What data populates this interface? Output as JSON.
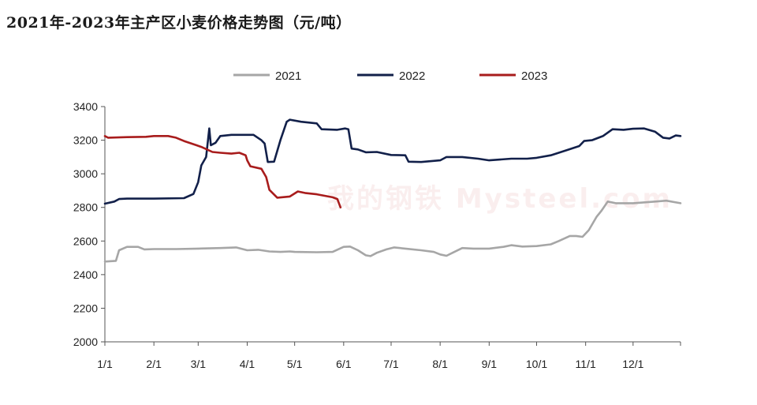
{
  "title": "2021年-2023年主产区小麦价格走势图（元/吨）",
  "watermark": "我的钢铁 Mysteel.com",
  "chart_data": {
    "type": "line",
    "title": "2021年-2023年主产区小麦价格走势图（元/吨）",
    "xlabel": "",
    "ylabel": "",
    "ylim": [
      2000,
      3400
    ],
    "yticks": [
      "2000",
      "2200",
      "2400",
      "2600",
      "2800",
      "3000",
      "3200",
      "3400"
    ],
    "xticks": [
      "1/1",
      "2/1",
      "3/1",
      "4/1",
      "5/1",
      "6/1",
      "7/1",
      "8/1",
      "9/1",
      "10/1",
      "11/1",
      "12/1"
    ],
    "grid": false,
    "legend_position": "top",
    "series": [
      {
        "name": "2021",
        "color": "#a6a6a6",
        "points": [
          [
            "1/1",
            2478
          ],
          [
            "1/8",
            2482
          ],
          [
            "1/10",
            2545
          ],
          [
            "1/15",
            2565
          ],
          [
            "1/22",
            2565
          ],
          [
            "1/26",
            2550
          ],
          [
            "2/1",
            2552
          ],
          [
            "2/15",
            2552
          ],
          [
            "3/1",
            2555
          ],
          [
            "3/15",
            2558
          ],
          [
            "3/25",
            2562
          ],
          [
            "4/1",
            2545
          ],
          [
            "4/8",
            2548
          ],
          [
            "4/15",
            2538
          ],
          [
            "4/22",
            2535
          ],
          [
            "4/28",
            2538
          ],
          [
            "5/1",
            2535
          ],
          [
            "5/15",
            2533
          ],
          [
            "5/25",
            2535
          ],
          [
            "6/1",
            2565
          ],
          [
            "6/5",
            2567
          ],
          [
            "6/10",
            2545
          ],
          [
            "6/15",
            2515
          ],
          [
            "6/18",
            2510
          ],
          [
            "6/22",
            2530
          ],
          [
            "6/28",
            2550
          ],
          [
            "7/3",
            2562
          ],
          [
            "7/10",
            2555
          ],
          [
            "7/20",
            2545
          ],
          [
            "7/28",
            2535
          ],
          [
            "8/1",
            2520
          ],
          [
            "8/5",
            2512
          ],
          [
            "8/10",
            2535
          ],
          [
            "8/15",
            2558
          ],
          [
            "8/22",
            2555
          ],
          [
            "9/1",
            2555
          ],
          [
            "9/10",
            2565
          ],
          [
            "9/15",
            2575
          ],
          [
            "9/22",
            2567
          ],
          [
            "10/1",
            2570
          ],
          [
            "10/10",
            2580
          ],
          [
            "10/15",
            2600
          ],
          [
            "10/22",
            2630
          ],
          [
            "10/26",
            2630
          ],
          [
            "10/30",
            2625
          ],
          [
            "11/3",
            2665
          ],
          [
            "11/8",
            2745
          ],
          [
            "11/11",
            2780
          ],
          [
            "11/15",
            2835
          ],
          [
            "11/20",
            2825
          ],
          [
            "12/1",
            2825
          ],
          [
            "12/15",
            2835
          ],
          [
            "12/22",
            2840
          ],
          [
            "12/31",
            2825
          ]
        ]
      },
      {
        "name": "2022",
        "color": "#12204a",
        "points": [
          [
            "1/1",
            2822
          ],
          [
            "1/7",
            2835
          ],
          [
            "1/10",
            2850
          ],
          [
            "1/15",
            2852
          ],
          [
            "2/1",
            2852
          ],
          [
            "2/20",
            2855
          ],
          [
            "2/26",
            2880
          ],
          [
            "3/1",
            2950
          ],
          [
            "3/3",
            3050
          ],
          [
            "3/6",
            3100
          ],
          [
            "3/8",
            3270
          ],
          [
            "3/9",
            3170
          ],
          [
            "3/12",
            3185
          ],
          [
            "3/15",
            3225
          ],
          [
            "3/22",
            3232
          ],
          [
            "4/5",
            3232
          ],
          [
            "4/10",
            3200
          ],
          [
            "4/12",
            3180
          ],
          [
            "4/14",
            3070
          ],
          [
            "4/18",
            3072
          ],
          [
            "4/22",
            3200
          ],
          [
            "4/26",
            3310
          ],
          [
            "4/28",
            3322
          ],
          [
            "5/5",
            3310
          ],
          [
            "5/15",
            3300
          ],
          [
            "5/18",
            3265
          ],
          [
            "5/28",
            3262
          ],
          [
            "6/2",
            3270
          ],
          [
            "6/4",
            3265
          ],
          [
            "6/6",
            3150
          ],
          [
            "6/10",
            3145
          ],
          [
            "6/15",
            3128
          ],
          [
            "6/22",
            3130
          ],
          [
            "7/1",
            3112
          ],
          [
            "7/10",
            3110
          ],
          [
            "7/12",
            3072
          ],
          [
            "7/20",
            3070
          ],
          [
            "8/1",
            3080
          ],
          [
            "8/5",
            3100
          ],
          [
            "8/15",
            3100
          ],
          [
            "8/25",
            3090
          ],
          [
            "9/1",
            3080
          ],
          [
            "9/15",
            3090
          ],
          [
            "9/25",
            3090
          ],
          [
            "10/1",
            3095
          ],
          [
            "10/10",
            3110
          ],
          [
            "10/20",
            3140
          ],
          [
            "10/28",
            3165
          ],
          [
            "10/31",
            3195
          ],
          [
            "11/5",
            3200
          ],
          [
            "11/12",
            3225
          ],
          [
            "11/18",
            3265
          ],
          [
            "11/25",
            3262
          ],
          [
            "12/1",
            3268
          ],
          [
            "12/8",
            3270
          ],
          [
            "12/15",
            3250
          ],
          [
            "12/20",
            3215
          ],
          [
            "12/24",
            3210
          ],
          [
            "12/28",
            3228
          ],
          [
            "12/31",
            3225
          ]
        ]
      },
      {
        "name": "2023",
        "color": "#a81c1c",
        "points": [
          [
            "1/1",
            3225
          ],
          [
            "1/3",
            3215
          ],
          [
            "1/15",
            3218
          ],
          [
            "1/27",
            3220
          ],
          [
            "2/1",
            3225
          ],
          [
            "2/10",
            3225
          ],
          [
            "2/15",
            3215
          ],
          [
            "2/20",
            3195
          ],
          [
            "2/28",
            3170
          ],
          [
            "3/3",
            3160
          ],
          [
            "3/10",
            3130
          ],
          [
            "3/15",
            3125
          ],
          [
            "3/22",
            3120
          ],
          [
            "3/27",
            3125
          ],
          [
            "3/31",
            3110
          ],
          [
            "4/1",
            3080
          ],
          [
            "4/3",
            3045
          ],
          [
            "4/10",
            3030
          ],
          [
            "4/13",
            2980
          ],
          [
            "4/15",
            2905
          ],
          [
            "4/20",
            2858
          ],
          [
            "4/28",
            2865
          ],
          [
            "5/3",
            2895
          ],
          [
            "5/8",
            2885
          ],
          [
            "5/15",
            2878
          ],
          [
            "5/25",
            2860
          ],
          [
            "5/28",
            2850
          ],
          [
            "5/30",
            2800
          ]
        ]
      }
    ]
  }
}
